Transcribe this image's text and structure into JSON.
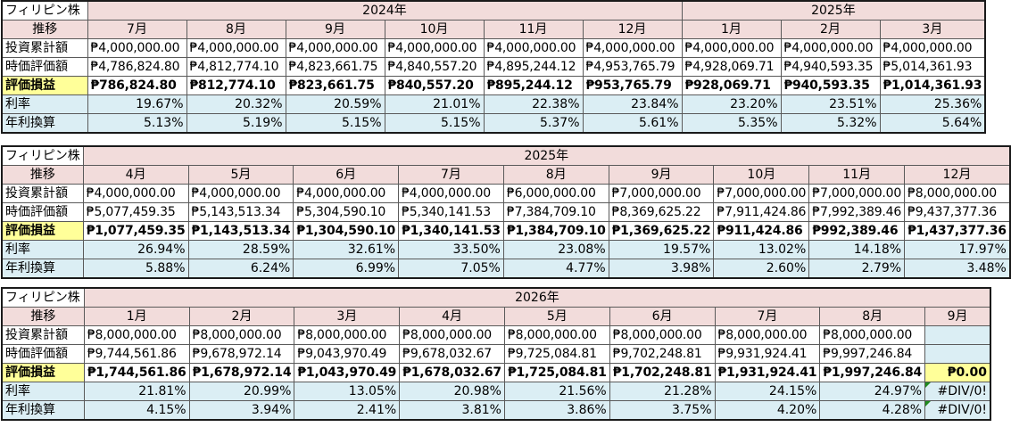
{
  "blocks": [
    {
      "corner_label": "フィリピン株",
      "years": [
        {
          "label": "2024年",
          "span": 6
        },
        {
          "label": "2025年",
          "span": 3
        }
      ],
      "row_labels": {
        "header": "推移",
        "invest": "投資累計額",
        "value": "時価評価額",
        "pl": "評価損益",
        "rate": "利率",
        "annual": "年利換算"
      },
      "months": [
        "7月",
        "8月",
        "9月",
        "10月",
        "11月",
        "12月",
        "1月",
        "2月",
        "3月"
      ],
      "invest": [
        "₱4,000,000.00",
        "₱4,000,000.00",
        "₱4,000,000.00",
        "₱4,000,000.00",
        "₱4,000,000.00",
        "₱4,000,000.00",
        "₱4,000,000.00",
        "₱4,000,000.00",
        "₱4,000,000.00"
      ],
      "value": [
        "₱4,786,824.80",
        "₱4,812,774.10",
        "₱4,823,661.75",
        "₱4,840,557.20",
        "₱4,895,244.12",
        "₱4,953,765.79",
        "₱4,928,069.71",
        "₱4,940,593.35",
        "₱5,014,361.93"
      ],
      "pl": [
        "₱786,824.80",
        "₱812,774.10",
        "₱823,661.75",
        "₱840,557.20",
        "₱895,244.12",
        "₱953,765.79",
        "₱928,069.71",
        "₱940,593.35",
        "₱1,014,361.93"
      ],
      "rate": [
        "19.67%",
        "20.32%",
        "20.59%",
        "21.01%",
        "22.38%",
        "23.84%",
        "23.20%",
        "23.51%",
        "25.36%"
      ],
      "annual": [
        "5.13%",
        "5.19%",
        "5.15%",
        "5.15%",
        "5.37%",
        "5.61%",
        "5.35%",
        "5.32%",
        "5.64%"
      ]
    },
    {
      "corner_label": "フィリピン株",
      "years": [
        {
          "label": "2025年",
          "span": 9
        }
      ],
      "row_labels": {
        "header": "推移",
        "invest": "投資累計額",
        "value": "時価評価額",
        "pl": "評価損益",
        "rate": "利率",
        "annual": "年利換算"
      },
      "months": [
        "4月",
        "5月",
        "6月",
        "7月",
        "8月",
        "9月",
        "10月",
        "11月",
        "12月"
      ],
      "invest": [
        "₱4,000,000.00",
        "₱4,000,000.00",
        "₱4,000,000.00",
        "₱4,000,000.00",
        "₱6,000,000.00",
        "₱7,000,000.00",
        "₱7,000,000.00",
        "₱7,000,000.00",
        "₱8,000,000.00"
      ],
      "value": [
        "₱5,077,459.35",
        "₱5,143,513.34",
        "₱5,304,590.10",
        "₱5,340,141.53",
        "₱7,384,709.10",
        "₱8,369,625.22",
        "₱7,911,424.86",
        "₱7,992,389.46",
        "₱9,437,377.36"
      ],
      "pl": [
        "₱1,077,459.35",
        "₱1,143,513.34",
        "₱1,304,590.10",
        "₱1,340,141.53",
        "₱1,384,709.10",
        "₱1,369,625.22",
        "₱911,424.86",
        "₱992,389.46",
        "₱1,437,377.36"
      ],
      "rate": [
        "26.94%",
        "28.59%",
        "32.61%",
        "33.50%",
        "23.08%",
        "19.57%",
        "13.02%",
        "14.18%",
        "17.97%"
      ],
      "annual": [
        "5.88%",
        "6.24%",
        "6.99%",
        "7.05%",
        "4.77%",
        "3.98%",
        "2.60%",
        "2.79%",
        "3.48%"
      ]
    },
    {
      "corner_label": "フィリピン株",
      "years": [
        {
          "label": "2026年",
          "span": 9
        }
      ],
      "row_labels": {
        "header": "推移",
        "invest": "投資累計額",
        "value": "時価評価額",
        "pl": "評価損益",
        "rate": "利率",
        "annual": "年利換算"
      },
      "months": [
        "1月",
        "2月",
        "3月",
        "4月",
        "5月",
        "6月",
        "7月",
        "8月",
        "9月"
      ],
      "invest": [
        "₱8,000,000.00",
        "₱8,000,000.00",
        "₱8,000,000.00",
        "₱8,000,000.00",
        "₱8,000,000.00",
        "₱8,000,000.00",
        "₱8,000,000.00",
        "₱8,000,000.00",
        ""
      ],
      "value": [
        "₱9,744,561.86",
        "₱9,678,972.14",
        "₱9,043,970.49",
        "₱9,678,032.67",
        "₱9,725,084.81",
        "₱9,702,248.81",
        "₱9,931,924.41",
        "₱9,997,246.84",
        ""
      ],
      "pl": [
        "₱1,744,561.86",
        "₱1,678,972.14",
        "₱1,043,970.49",
        "₱1,678,032.67",
        "₱1,725,084.81",
        "₱1,702,248.81",
        "₱1,931,924.41",
        "₱1,997,246.84",
        "₱0.00"
      ],
      "rate": [
        "21.81%",
        "20.99%",
        "13.05%",
        "20.98%",
        "21.56%",
        "21.28%",
        "24.15%",
        "24.97%",
        "#DIV/0!"
      ],
      "annual": [
        "4.15%",
        "3.94%",
        "2.41%",
        "3.81%",
        "3.86%",
        "3.75%",
        "4.20%",
        "4.28%",
        "#DIV/0!"
      ]
    }
  ]
}
